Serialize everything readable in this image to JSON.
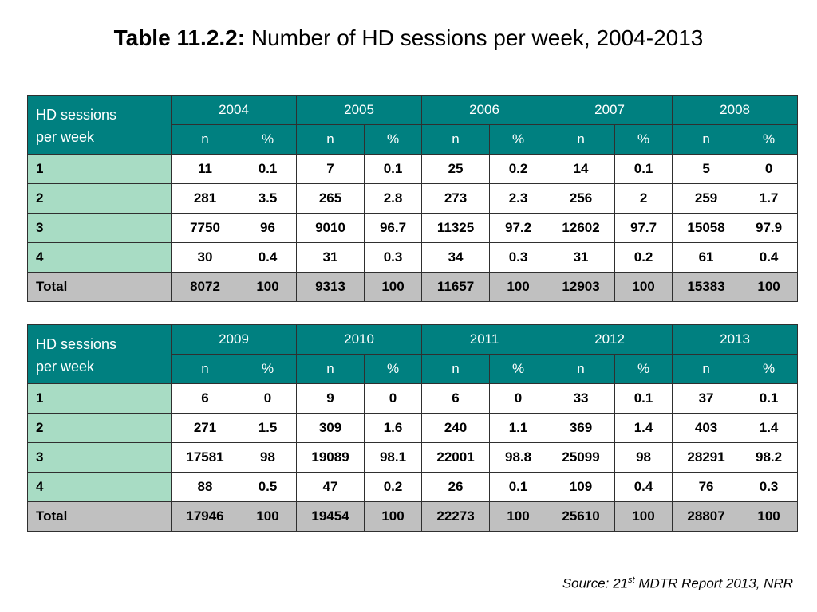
{
  "title": {
    "prefix": "Table 11.2.2:",
    "text": " Number of HD sessions per week, 2004-2013"
  },
  "tables": [
    {
      "row_header_label": "HD sessions per week",
      "years": [
        "2004",
        "2005",
        "2006",
        "2007",
        "2008"
      ],
      "sub_headers": [
        "n",
        "%"
      ],
      "rows": [
        {
          "label": "1",
          "values": [
            "11",
            "0.1",
            "7",
            "0.1",
            "25",
            "0.2",
            "14",
            "0.1",
            "5",
            "0"
          ]
        },
        {
          "label": "2",
          "values": [
            "281",
            "3.5",
            "265",
            "2.8",
            "273",
            "2.3",
            "256",
            "2",
            "259",
            "1.7"
          ]
        },
        {
          "label": "3",
          "values": [
            "7750",
            "96",
            "9010",
            "96.7",
            "11325",
            "97.2",
            "12602",
            "97.7",
            "15058",
            "97.9"
          ]
        },
        {
          "label": "4",
          "values": [
            "30",
            "0.4",
            "31",
            "0.3",
            "34",
            "0.3",
            "31",
            "0.2",
            "61",
            "0.4"
          ]
        },
        {
          "label": "Total",
          "values": [
            "8072",
            "100",
            "9313",
            "100",
            "11657",
            "100",
            "12903",
            "100",
            "15383",
            "100"
          ]
        }
      ]
    },
    {
      "row_header_label": "HD sessions per week",
      "years": [
        "2009",
        "2010",
        "2011",
        "2012",
        "2013"
      ],
      "sub_headers": [
        "n",
        "%"
      ],
      "rows": [
        {
          "label": "1",
          "values": [
            "6",
            "0",
            "9",
            "0",
            "6",
            "0",
            "33",
            "0.1",
            "37",
            "0.1"
          ]
        },
        {
          "label": "2",
          "values": [
            "271",
            "1.5",
            "309",
            "1.6",
            "240",
            "1.1",
            "369",
            "1.4",
            "403",
            "1.4"
          ]
        },
        {
          "label": "3",
          "values": [
            "17581",
            "98",
            "19089",
            "98.1",
            "22001",
            "98.8",
            "25099",
            "98",
            "28291",
            "98.2"
          ]
        },
        {
          "label": "4",
          "values": [
            "88",
            "0.5",
            "47",
            "0.2",
            "26",
            "0.1",
            "109",
            "0.4",
            "76",
            "0.3"
          ]
        },
        {
          "label": "Total",
          "values": [
            "17946",
            "100",
            "19454",
            "100",
            "22273",
            "100",
            "25610",
            "100",
            "28807",
            "100"
          ]
        }
      ]
    }
  ],
  "source": {
    "prefix": "Source: 21",
    "sup": "st",
    "suffix": " MDTR Report 2013, NRR"
  },
  "colors": {
    "header": "#008080",
    "row_label": "#a8dcc4",
    "total_row": "#c0c0c0"
  }
}
